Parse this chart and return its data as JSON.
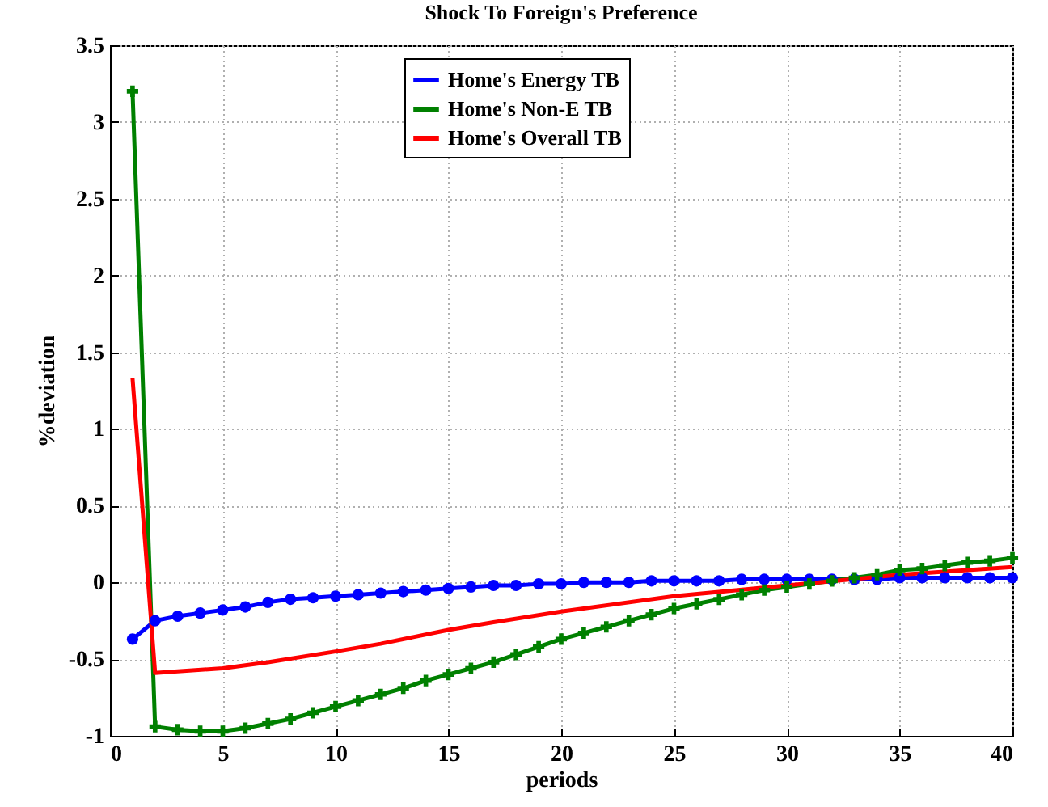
{
  "chart_data": {
    "type": "line",
    "title": "Shock To Foreign's Preference",
    "xlabel": "periods",
    "ylabel": "%deviation",
    "xlim": [
      0,
      40
    ],
    "xticks": [
      0,
      5,
      10,
      15,
      20,
      25,
      30,
      35,
      40
    ],
    "ylim": [
      -1,
      3.5
    ],
    "yticks": [
      -1,
      -0.5,
      0,
      0.5,
      1,
      1.5,
      2,
      2.5,
      3,
      3.5
    ],
    "grid": true,
    "legend": "top right",
    "line_style": "solid",
    "series": [
      {
        "name": "Home's Energy TB",
        "color": "#0000ff",
        "marker": "circle",
        "x": [
          1,
          2,
          3,
          4,
          5,
          6,
          7,
          8,
          9,
          10,
          11,
          12,
          13,
          14,
          15,
          16,
          17,
          18,
          19,
          20,
          21,
          22,
          23,
          24,
          25,
          26,
          27,
          28,
          29,
          30,
          31,
          32,
          33,
          34,
          35,
          36,
          37,
          38,
          39,
          40
        ],
        "values": [
          -0.37,
          -0.25,
          -0.22,
          -0.2,
          -0.18,
          -0.16,
          -0.13,
          -0.11,
          -0.1,
          -0.09,
          -0.08,
          -0.07,
          -0.06,
          -0.05,
          -0.04,
          -0.03,
          -0.02,
          -0.02,
          -0.01,
          -0.01,
          0,
          0,
          0,
          0.01,
          0.01,
          0.01,
          0.01,
          0.02,
          0.02,
          0.02,
          0.02,
          0.02,
          0.02,
          0.02,
          0.03,
          0.03,
          0.03,
          0.03,
          0.03,
          0.03
        ]
      },
      {
        "name": "Home's Non-E TB",
        "color": "#008000",
        "marker": "cross",
        "x": [
          1,
          2,
          3,
          4,
          5,
          6,
          7,
          8,
          9,
          10,
          11,
          12,
          13,
          14,
          15,
          16,
          17,
          18,
          19,
          20,
          21,
          22,
          23,
          24,
          25,
          26,
          27,
          28,
          29,
          30,
          31,
          32,
          33,
          34,
          35,
          36,
          37,
          38,
          39,
          40
        ],
        "values": [
          3.2,
          -0.94,
          -0.96,
          -0.97,
          -0.97,
          -0.95,
          -0.92,
          -0.89,
          -0.85,
          -0.81,
          -0.77,
          -0.73,
          -0.69,
          -0.64,
          -0.6,
          -0.56,
          -0.52,
          -0.47,
          -0.42,
          -0.37,
          -0.33,
          -0.29,
          -0.25,
          -0.21,
          -0.17,
          -0.14,
          -0.11,
          -0.08,
          -0.05,
          -0.03,
          -0.01,
          0.01,
          0.03,
          0.05,
          0.08,
          0.09,
          0.11,
          0.13,
          0.14,
          0.16
        ]
      },
      {
        "name": "Home's Overall TB",
        "color": "#ff0000",
        "marker": "none",
        "x": [
          1,
          2,
          3,
          5,
          7,
          10,
          12,
          15,
          17,
          20,
          25,
          30,
          35,
          40
        ],
        "values": [
          1.33,
          -0.59,
          -0.58,
          -0.56,
          -0.52,
          -0.45,
          -0.4,
          -0.31,
          -0.26,
          -0.19,
          -0.09,
          -0.02,
          0.05,
          0.1
        ]
      }
    ]
  }
}
